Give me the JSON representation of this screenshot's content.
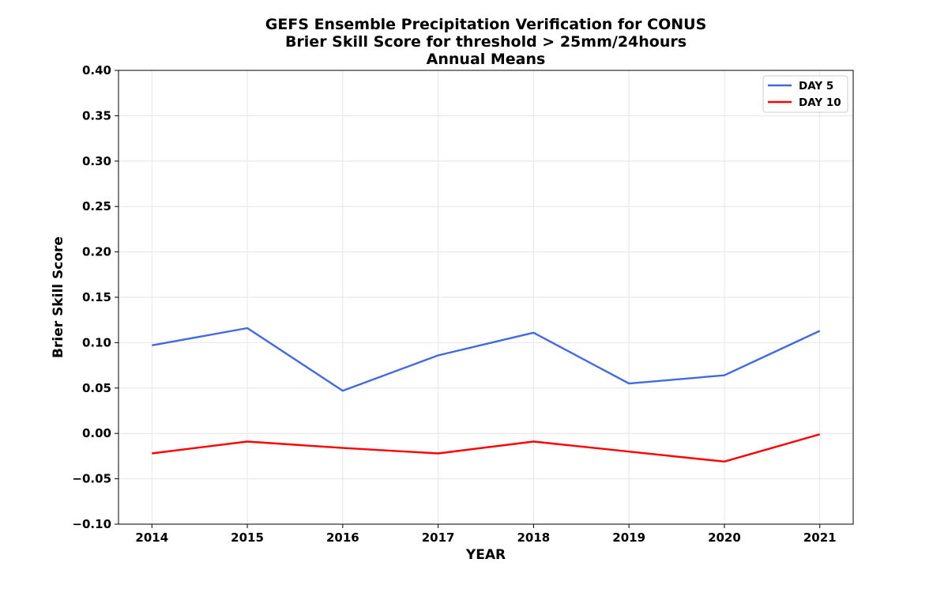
{
  "chart_data": {
    "type": "line",
    "title": [
      "GEFS Ensemble Precipitation Verification for CONUS",
      "Brier Skill Score for threshold > 25mm/24hours",
      "Annual Means"
    ],
    "xlabel": "YEAR",
    "ylabel": "Brier Skill Score",
    "x": [
      2014,
      2015,
      2016,
      2017,
      2018,
      2019,
      2020,
      2021
    ],
    "x_tick_labels": [
      "2014",
      "2015",
      "2016",
      "2017",
      "2018",
      "2019",
      "2020",
      "2021"
    ],
    "ylim": [
      -0.1,
      0.4
    ],
    "y_ticks": [
      -0.1,
      -0.05,
      0.0,
      0.05,
      0.1,
      0.15,
      0.2,
      0.25,
      0.3,
      0.35,
      0.4
    ],
    "y_tick_labels": [
      "−0.10",
      "−0.05",
      "0.00",
      "0.05",
      "0.10",
      "0.15",
      "0.20",
      "0.25",
      "0.30",
      "0.35",
      "0.40"
    ],
    "grid": true,
    "legend_position": "top-right",
    "series": [
      {
        "name": "DAY 5",
        "color": "#4169e1",
        "values": [
          0.097,
          0.116,
          0.047,
          0.086,
          0.111,
          0.055,
          0.064,
          0.113
        ]
      },
      {
        "name": "DAY 10",
        "color": "#ff0000",
        "values": [
          -0.022,
          -0.009,
          -0.016,
          -0.022,
          -0.009,
          -0.02,
          -0.031,
          -0.001
        ]
      }
    ]
  }
}
